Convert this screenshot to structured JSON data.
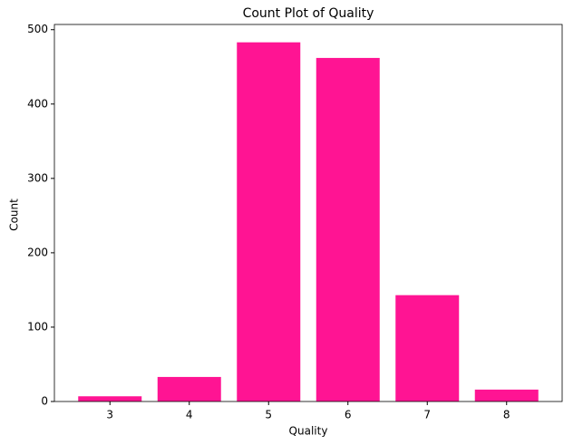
{
  "chart_data": {
    "type": "bar",
    "title": "Count Plot of Quality",
    "x_label": "Quality",
    "y_label": "Count",
    "categories": [
      "3",
      "4",
      "5",
      "6",
      "7",
      "8"
    ],
    "values": [
      7,
      33,
      483,
      462,
      143,
      16
    ],
    "color": "#ff1493",
    "ylim": [
      0,
      507
    ],
    "yticks": [
      0,
      100,
      200,
      300,
      400,
      500
    ]
  }
}
